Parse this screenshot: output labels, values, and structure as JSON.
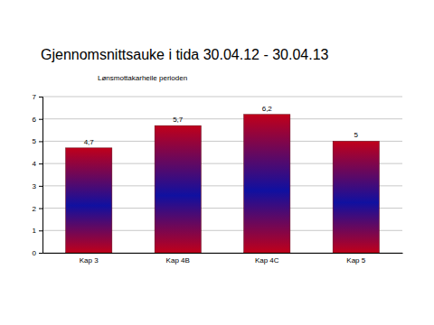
{
  "chart_data": {
    "type": "bar",
    "title": "Gjennomsnittsauke i tida 30.04.12 - 30.04.13",
    "subtitle": "Lønsmottakarheile perioden",
    "categories": [
      "Kap 3",
      "Kap 4B",
      "Kap 4C",
      "Kap 5"
    ],
    "values": [
      4.7,
      5.7,
      6.2,
      5
    ],
    "value_labels": [
      "4,7",
      "5,7",
      "6,2",
      "5"
    ],
    "data_labels": true,
    "color": "#c0001a",
    "ylim": [
      0,
      7
    ],
    "yticks": [
      0,
      1,
      2,
      3,
      4,
      5,
      6,
      7
    ],
    "grid": true
  }
}
